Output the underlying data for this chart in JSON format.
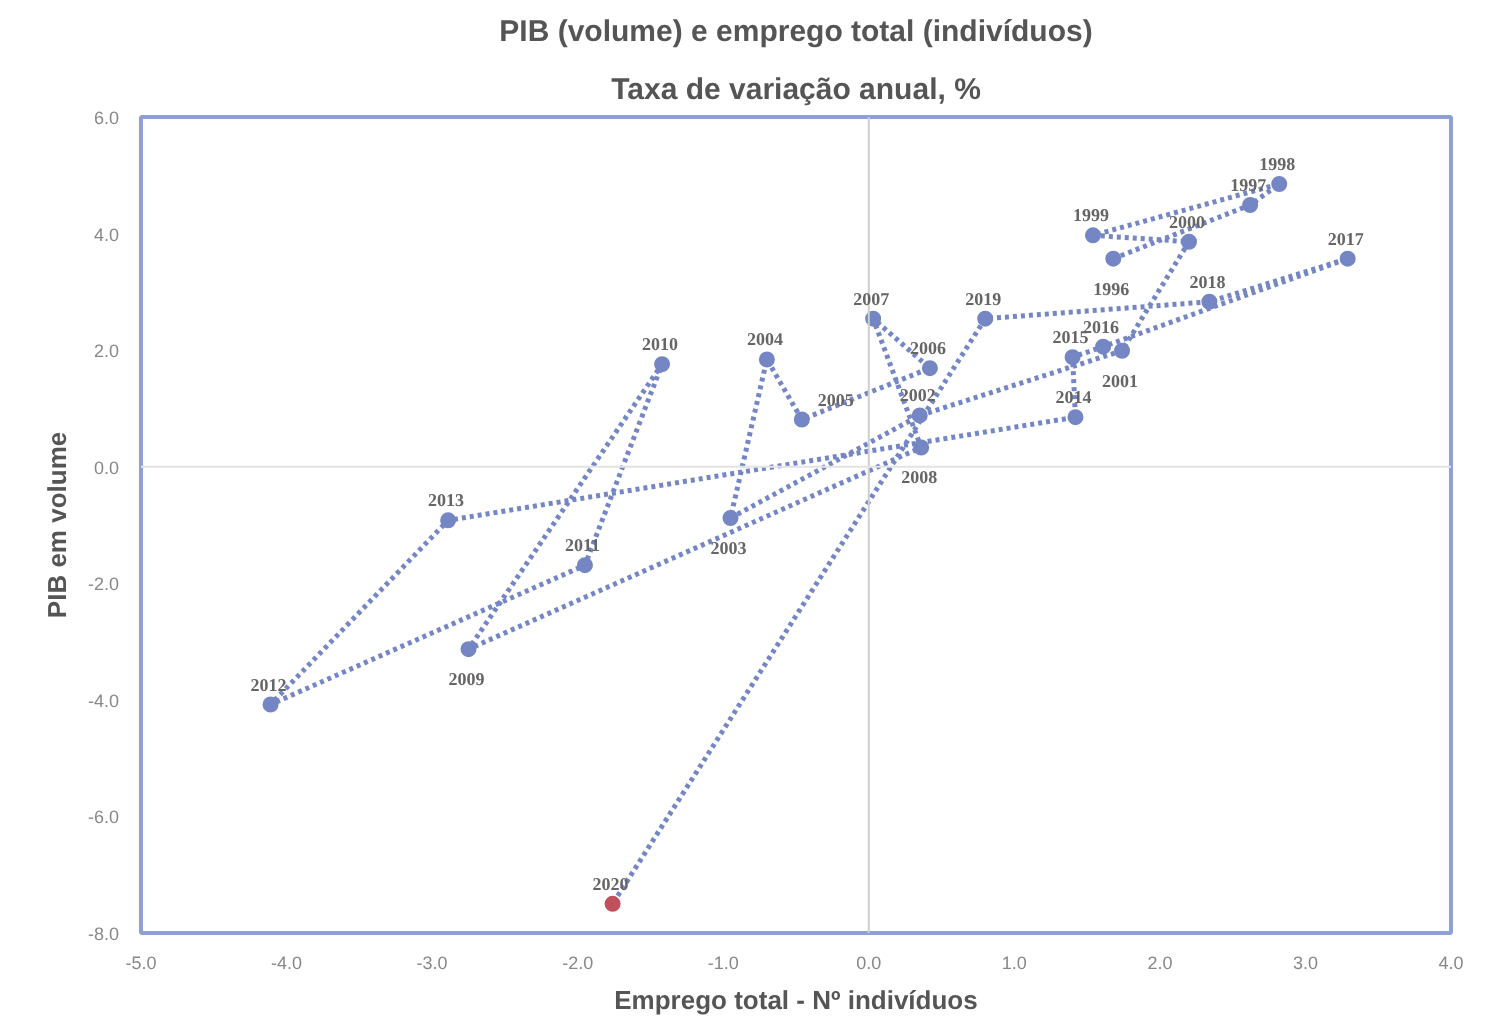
{
  "chart_data": {
    "type": "line",
    "title": "PIB (volume) e emprego total (indivíduos)",
    "subtitle": "Taxa de variação anual, %",
    "xlabel": "Emprego total - Nº indivíduos",
    "ylabel": "PIB em volume",
    "xlim": [
      -5,
      4
    ],
    "ylim": [
      -8,
      6
    ],
    "xticks": [
      {
        "value": -5,
        "label": "-5.0"
      },
      {
        "value": -4,
        "label": "-4.0"
      },
      {
        "value": -3,
        "label": "-3.0"
      },
      {
        "value": -2,
        "label": "-2.0"
      },
      {
        "value": -1,
        "label": "-1.0"
      },
      {
        "value": 0,
        "label": "0.0"
      },
      {
        "value": 1,
        "label": "1.0"
      },
      {
        "value": 2,
        "label": "2.0"
      },
      {
        "value": 3,
        "label": "3.0"
      },
      {
        "value": 4,
        "label": "4.0"
      }
    ],
    "yticks": [
      {
        "value": -8,
        "label": "-8.0"
      },
      {
        "value": -6,
        "label": "-6.0"
      },
      {
        "value": -4,
        "label": "-4.0"
      },
      {
        "value": -2,
        "label": "-2.0"
      },
      {
        "value": 0,
        "label": "0.0"
      },
      {
        "value": 2,
        "label": "2.0"
      },
      {
        "value": 4,
        "label": "4.0"
      },
      {
        "value": 6,
        "label": "6.0"
      }
    ],
    "grid": false,
    "marker": "circle",
    "line_style": "dotted",
    "ref_lines": [
      {
        "axis": "x",
        "value": 0,
        "color": "#cfcfcf"
      },
      {
        "axis": "y",
        "value": 0,
        "color": "#e3e3e3"
      }
    ],
    "series": [
      {
        "color": "#7586c4",
        "x": [
          1.68,
          2.62,
          2.82,
          1.54,
          2.2,
          1.74,
          0.35,
          -0.95,
          -0.7,
          -0.46,
          0.42,
          0.03,
          0.36,
          -2.75,
          -1.42,
          -1.95,
          -4.11,
          -2.89,
          1.42,
          1.4,
          1.61,
          3.29,
          2.34,
          0.8,
          -1.76
        ],
        "values": [
          3.57,
          4.49,
          4.85,
          3.97,
          3.86,
          1.99,
          0.88,
          -0.88,
          1.84,
          0.81,
          1.69,
          2.54,
          0.33,
          -3.13,
          1.76,
          -1.69,
          -4.08,
          -0.92,
          0.85,
          1.88,
          2.06,
          3.57,
          2.83,
          2.54,
          -7.5
        ],
        "colors": [
          "#7586c4",
          "#7586c4",
          "#7586c4",
          "#7586c4",
          "#7586c4",
          "#7586c4",
          "#7586c4",
          "#7586c4",
          "#7586c4",
          "#7586c4",
          "#7586c4",
          "#7586c4",
          "#7586c4",
          "#7586c4",
          "#7586c4",
          "#7586c4",
          "#7586c4",
          "#7586c4",
          "#7586c4",
          "#7586c4",
          "#7586c4",
          "#7586c4",
          "#7586c4",
          "#7586c4",
          "#c0505a"
        ]
      }
    ],
    "annotations": [
      {
        "text": "1996",
        "x": 1.68,
        "y": 3.57
      },
      {
        "text": "1997",
        "x": 2.62,
        "y": 4.49
      },
      {
        "text": "1998",
        "x": 2.82,
        "y": 4.85
      },
      {
        "text": "1999",
        "x": 1.54,
        "y": 3.97
      },
      {
        "text": "2000",
        "x": 2.2,
        "y": 3.86
      },
      {
        "text": "2001",
        "x": 1.74,
        "y": 1.99
      },
      {
        "text": "2002",
        "x": 0.35,
        "y": 0.88
      },
      {
        "text": "2003",
        "x": -0.95,
        "y": -0.88
      },
      {
        "text": "2004",
        "x": -0.7,
        "y": 1.84
      },
      {
        "text": "2005",
        "x": -0.46,
        "y": 0.81
      },
      {
        "text": "2006",
        "x": 0.42,
        "y": 1.69
      },
      {
        "text": "2007",
        "x": 0.03,
        "y": 2.54
      },
      {
        "text": "2008",
        "x": 0.36,
        "y": 0.33
      },
      {
        "text": "2009",
        "x": -2.75,
        "y": -3.13
      },
      {
        "text": "2010",
        "x": -1.42,
        "y": 1.76
      },
      {
        "text": "2011",
        "x": -1.95,
        "y": -1.69
      },
      {
        "text": "2012",
        "x": -4.11,
        "y": -4.08
      },
      {
        "text": "2013",
        "x": -2.89,
        "y": -0.92
      },
      {
        "text": "2014",
        "x": 1.42,
        "y": 0.85
      },
      {
        "text": "2015",
        "x": 1.4,
        "y": 1.88
      },
      {
        "text": "2016",
        "x": 1.61,
        "y": 2.06
      },
      {
        "text": "2017",
        "x": 3.29,
        "y": 3.57
      },
      {
        "text": "2018",
        "x": 2.34,
        "y": 2.83
      },
      {
        "text": "2019",
        "x": 0.8,
        "y": 2.54
      },
      {
        "text": "2020",
        "x": -1.76,
        "y": -7.5
      }
    ]
  }
}
